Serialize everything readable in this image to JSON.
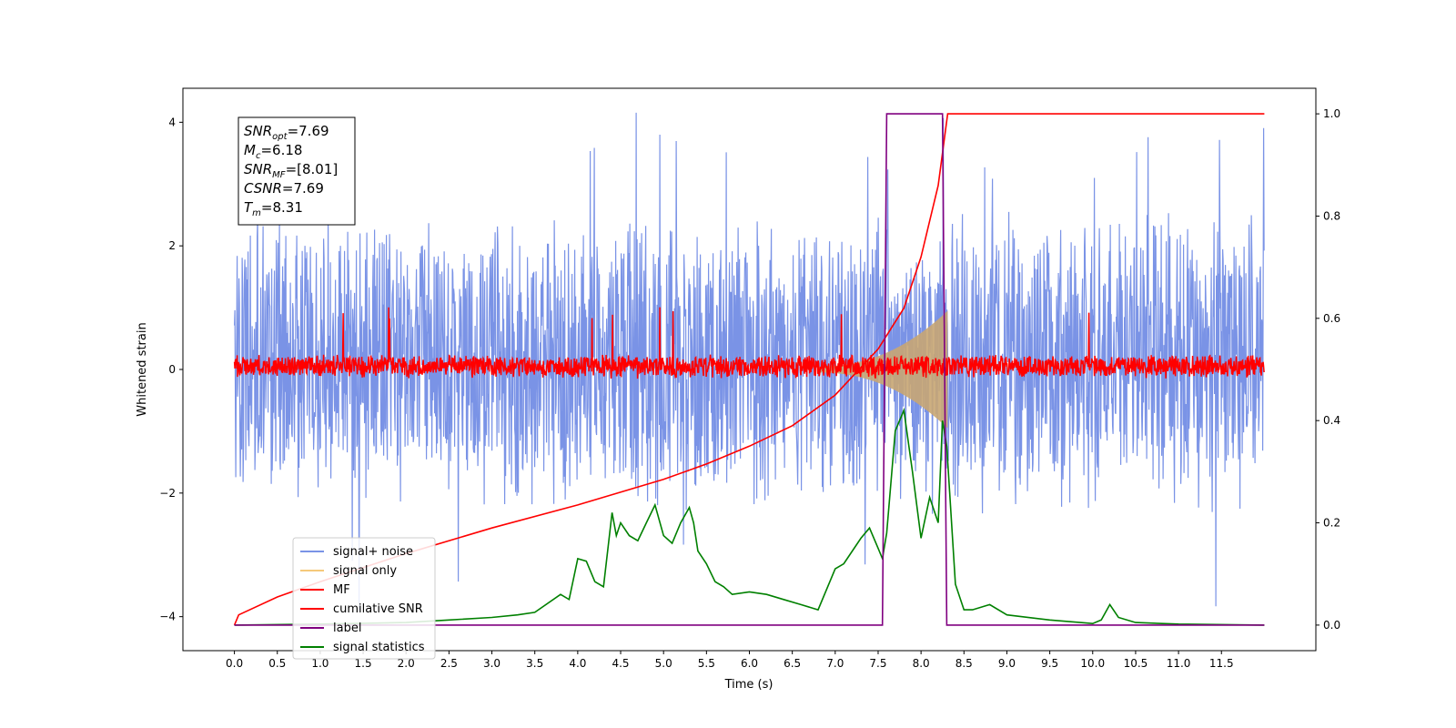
{
  "chart_data": {
    "type": "line",
    "title": "",
    "xlabel": "Time (s)",
    "ylabel": "Whitened strain",
    "ylabel_right": "",
    "xlim": [
      -0.6,
      12.6
    ],
    "ylim": [
      -4.55,
      4.55
    ],
    "ylim_right": [
      -0.05,
      1.05
    ],
    "x_ticks": [
      "0.0",
      "0.5",
      "1.0",
      "1.5",
      "2.0",
      "2.5",
      "3.0",
      "3.5",
      "4.0",
      "4.5",
      "5.0",
      "5.5",
      "6.0",
      "6.5",
      "7.0",
      "7.5",
      "8.0",
      "8.5",
      "9.0",
      "9.5",
      "10.0",
      "10.5",
      "11.0",
      "11.5"
    ],
    "y_ticks_left": [
      "−4",
      "−2",
      "0",
      "2",
      "4"
    ],
    "y_ticks_right": [
      "0.0",
      "0.2",
      "0.4",
      "0.6",
      "0.8",
      "1.0"
    ],
    "grid": false,
    "legend_position": "lower-left",
    "annotation": {
      "lines": [
        {
          "base": "SNR",
          "sub": "opt",
          "value": "=7.69"
        },
        {
          "base": "M",
          "sub": "c",
          "value": "=6.18"
        },
        {
          "base": "SNR",
          "sub": "MF",
          "value": "=[8.01]"
        },
        {
          "base": "CSNR",
          "sub": "",
          "value": "=7.69"
        },
        {
          "base": "T",
          "sub": "m",
          "value": "=8.31"
        }
      ]
    },
    "series": [
      {
        "name": "signal+ noise",
        "color": "#7a93e6",
        "axis": "left",
        "style": "noise",
        "x_range": [
          0,
          12
        ],
        "envelope": [
          -2.4,
          2.6
        ],
        "spikes": [
          -4.1,
          4.1
        ]
      },
      {
        "name": "signal only",
        "color": "#f5c97a",
        "axis": "left",
        "style": "chirp",
        "x_range": [
          6.8,
          8.31
        ],
        "amplitude_end": 0.9
      },
      {
        "name": "MF",
        "color": "#ff0000",
        "axis": "left",
        "style": "noise",
        "x_range": [
          0,
          12
        ],
        "envelope": [
          -0.15,
          0.25
        ],
        "spikes": [
          -0.2,
          1.0
        ]
      },
      {
        "name": "cumilative SNR",
        "color": "#ff0000",
        "axis": "right",
        "x": [
          0.0,
          0.05,
          0.5,
          1.0,
          2.0,
          3.0,
          4.0,
          5.0,
          5.5,
          6.0,
          6.5,
          7.0,
          7.5,
          7.8,
          8.0,
          8.2,
          8.31,
          12.0
        ],
        "values": [
          0.0,
          0.02,
          0.055,
          0.085,
          0.14,
          0.19,
          0.235,
          0.285,
          0.315,
          0.35,
          0.39,
          0.45,
          0.54,
          0.62,
          0.72,
          0.86,
          1.0,
          1.0
        ]
      },
      {
        "name": "label",
        "color": "#800080",
        "axis": "right",
        "x": [
          0.0,
          7.55,
          7.6,
          8.25,
          8.3,
          12.0
        ],
        "values": [
          0.0,
          0.0,
          1.0,
          1.0,
          0.0,
          0.0
        ]
      },
      {
        "name": "signal statistics",
        "color": "#008000",
        "axis": "right",
        "x": [
          0.0,
          1.0,
          2.0,
          2.5,
          3.0,
          3.3,
          3.5,
          3.8,
          3.9,
          4.0,
          4.1,
          4.2,
          4.3,
          4.4,
          4.45,
          4.5,
          4.6,
          4.7,
          4.8,
          4.9,
          5.0,
          5.1,
          5.2,
          5.3,
          5.35,
          5.4,
          5.5,
          5.6,
          5.7,
          5.8,
          6.0,
          6.2,
          6.4,
          6.6,
          6.8,
          7.0,
          7.1,
          7.3,
          7.4,
          7.5,
          7.55,
          7.6,
          7.7,
          7.8,
          7.9,
          8.0,
          8.1,
          8.2,
          8.25,
          8.3,
          8.4,
          8.5,
          8.6,
          8.8,
          9.0,
          9.5,
          10.0,
          10.1,
          10.2,
          10.3,
          10.5,
          11.0,
          12.0
        ],
        "values": [
          0.0,
          0.002,
          0.005,
          0.01,
          0.015,
          0.02,
          0.025,
          0.06,
          0.05,
          0.13,
          0.125,
          0.085,
          0.075,
          0.22,
          0.175,
          0.2,
          0.175,
          0.165,
          0.2,
          0.235,
          0.175,
          0.16,
          0.2,
          0.23,
          0.2,
          0.145,
          0.12,
          0.085,
          0.075,
          0.06,
          0.065,
          0.06,
          0.05,
          0.04,
          0.03,
          0.11,
          0.12,
          0.17,
          0.19,
          0.15,
          0.13,
          0.18,
          0.38,
          0.42,
          0.3,
          0.17,
          0.25,
          0.2,
          0.4,
          0.35,
          0.08,
          0.03,
          0.03,
          0.04,
          0.02,
          0.01,
          0.003,
          0.01,
          0.04,
          0.015,
          0.005,
          0.002,
          0.0
        ]
      }
    ]
  }
}
